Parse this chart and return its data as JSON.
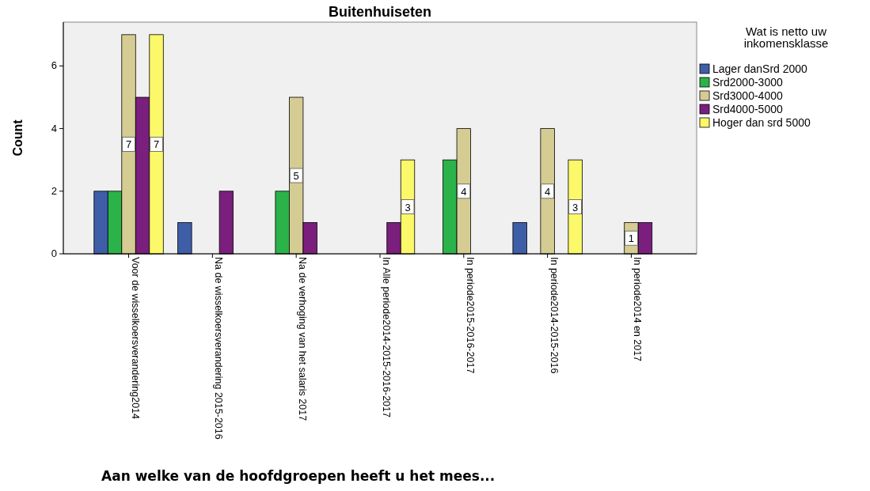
{
  "chart_data": {
    "type": "bar",
    "title": "Buitenhuiseten",
    "xlabel": "Aan welke van de hoofdgroepen heeft u het mees...",
    "ylabel": "Count",
    "legend_title": "Wat is netto uw inkomensklasse",
    "categories": [
      "Voor de wisselkoersverandering2014",
      "Na de wisselkoersverandering 2015-2016",
      "Na de verhoging van het salaris 2017",
      "In Alle periode2014-2015-2016-2017",
      "In periode2015-2016-2017",
      "In periode2014-2015-2016",
      "In periode2014 en 2017"
    ],
    "series": [
      {
        "name": "Lager danSrd 2000",
        "color": "#3e5ea8",
        "values": [
          2,
          1,
          null,
          null,
          null,
          1,
          null
        ]
      },
      {
        "name": "Srd2000-3000",
        "color": "#2bb34a",
        "values": [
          2,
          null,
          2,
          null,
          3,
          null,
          null
        ]
      },
      {
        "name": "Srd3000-4000",
        "color": "#d4cc93",
        "values": [
          7,
          null,
          5,
          null,
          4,
          4,
          1
        ],
        "value_labels": [
          "7",
          null,
          "5",
          null,
          "4",
          "4",
          "1"
        ]
      },
      {
        "name": "Srd4000-5000",
        "color": "#7a1f7e",
        "values": [
          5,
          2,
          1,
          1,
          null,
          null,
          1
        ]
      },
      {
        "name": "Hoger dan srd 5000",
        "color": "#fbf869",
        "values": [
          7,
          null,
          null,
          3,
          null,
          3,
          null
        ],
        "value_labels": [
          "7",
          null,
          null,
          "3",
          null,
          "3",
          null
        ]
      }
    ],
    "ylim": [
      0,
      7.4
    ],
    "yticks": [
      0,
      2,
      4,
      6
    ],
    "grid": false,
    "legend": "right"
  }
}
